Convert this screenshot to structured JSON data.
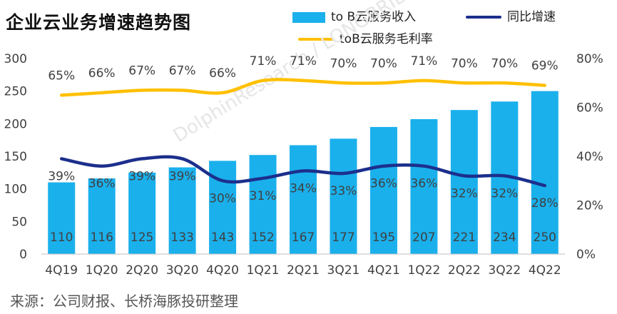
{
  "title": "企业云业务增速趋势图",
  "source": "来源：公司财报、长桥海豚投研整理",
  "watermark": "DolphinResearch / LONGBRIDGE",
  "colors": {
    "bar": "#1ab0ec",
    "growth_line": "#1c2f8c",
    "margin_line": "#ffc000",
    "axis_text": "#404040",
    "label_text": "#404040"
  },
  "chart_data": {
    "type": "bar+line",
    "title": "企业云业务增速趋势图",
    "categories": [
      "4Q19",
      "1Q20",
      "2Q20",
      "3Q20",
      "4Q20",
      "1Q21",
      "2Q21",
      "3Q21",
      "4Q21",
      "1Q22",
      "2Q22",
      "3Q22",
      "4Q22"
    ],
    "series": [
      {
        "name": "to B云服务收入",
        "type": "bar",
        "axis": "left",
        "values": [
          110,
          116,
          125,
          133,
          143,
          152,
          167,
          177,
          195,
          207,
          221,
          234,
          250
        ],
        "labels": [
          "110",
          "116",
          "125",
          "133",
          "143",
          "152",
          "167",
          "177",
          "195",
          "207",
          "221",
          "234",
          "250"
        ]
      },
      {
        "name": "同比增速",
        "type": "line",
        "axis": "right",
        "values": [
          39,
          36,
          39,
          39,
          30,
          31,
          34,
          33,
          36,
          36,
          32,
          32,
          28
        ],
        "labels": [
          "39%",
          "36%",
          "39%",
          "39%",
          "30%",
          "31%",
          "34%",
          "33%",
          "36%",
          "36%",
          "32%",
          "32%",
          "28%"
        ]
      },
      {
        "name": "toB云服务毛利率",
        "type": "line",
        "axis": "right",
        "values": [
          65,
          66,
          67,
          67,
          66,
          71,
          71,
          70,
          70,
          71,
          70,
          70,
          69
        ],
        "labels": [
          "65%",
          "66%",
          "67%",
          "67%",
          "66%",
          "71%",
          "71%",
          "70%",
          "70%",
          "71%",
          "70%",
          "70%",
          "69%"
        ]
      }
    ],
    "left_axis": {
      "ylim": [
        0,
        300
      ],
      "ticks": [
        "0",
        "50",
        "100",
        "150",
        "200",
        "250",
        "300"
      ]
    },
    "right_axis": {
      "ylim": [
        0,
        80
      ],
      "ticks": [
        "0%",
        "20%",
        "40%",
        "60%",
        "80%"
      ]
    },
    "legend": {
      "bar": "to B云服务收入",
      "growth": "同比增速",
      "margin": "toB云服务毛利率",
      "placement": "top"
    }
  }
}
